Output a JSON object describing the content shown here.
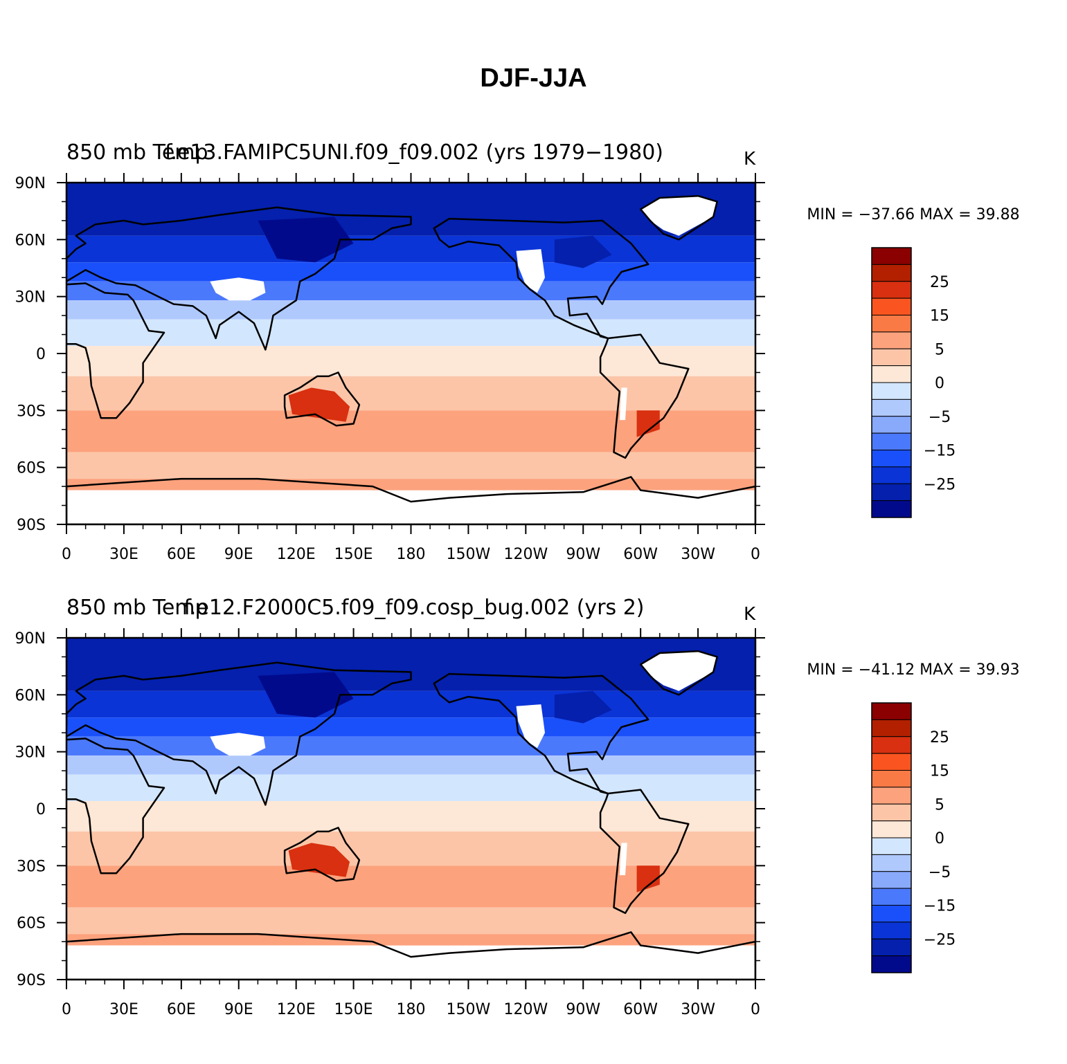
{
  "title": "DJF-JJA",
  "panels": [
    {
      "left_string": "850  mb Temp",
      "center_string": "f.e13.FAMIPC5UNI.f09_f09.002 (yrs 1979−1980)",
      "right_string": "K",
      "stats": "MIN = −37.66  MAX =   39.88"
    },
    {
      "left_string": "850  mb Temp",
      "center_string": "f.e12.F2000C5.f09_f09.cosp_bug.002 (yrs 2)",
      "right_string": "K",
      "stats": "MIN = −41.12  MAX =   39.93"
    }
  ],
  "x_tick_labels": [
    "0",
    "30E",
    "60E",
    "90E",
    "120E",
    "150E",
    "180",
    "150W",
    "120W",
    "90W",
    "60W",
    "30W",
    "0"
  ],
  "y_tick_labels": [
    "90N",
    "60N",
    "30N",
    "0",
    "30S",
    "60S",
    "90S"
  ],
  "colorbar": {
    "labels": [
      "25",
      "15",
      "5",
      "0",
      "−5",
      "−15",
      "−25"
    ],
    "colors": [
      "#8b0000",
      "#b22000",
      "#d83010",
      "#fa5520",
      "#fa7a45",
      "#fca27d",
      "#fcc5a8",
      "#fde7d6",
      "#d2e6fd",
      "#b0c9fd",
      "#89a9fb",
      "#4b79fb",
      "#1a50fa",
      "#0a34d6",
      "#0420ad",
      "#020a8c"
    ]
  },
  "chart_data": {
    "type": "heatmap",
    "title": "DJF-JJA",
    "variable": "850  mb Temp",
    "units": "K",
    "contour_levels": [
      -30,
      -25,
      -20,
      -15,
      -10,
      -5,
      0,
      5,
      10,
      15,
      20,
      25,
      30
    ],
    "x_ticks": [
      "0",
      "30E",
      "60E",
      "90E",
      "120E",
      "150E",
      "180",
      "150W",
      "120W",
      "90W",
      "60W",
      "30W",
      "0"
    ],
    "y_ticks": [
      "90N",
      "60N",
      "30N",
      "0",
      "30S",
      "60S",
      "90S"
    ],
    "xlim": [
      0,
      360
    ],
    "ylim": [
      -90,
      90
    ],
    "panels": [
      {
        "case": "f.e13.FAMIPC5UNI.f09_f09.002 (yrs 1979−1980)",
        "min": -37.66,
        "max": 39.88
      },
      {
        "case": "f.e12.F2000C5.f09_f09.cosp_bug.002 (yrs 2)",
        "min": -41.12,
        "max": 39.93
      }
    ]
  }
}
